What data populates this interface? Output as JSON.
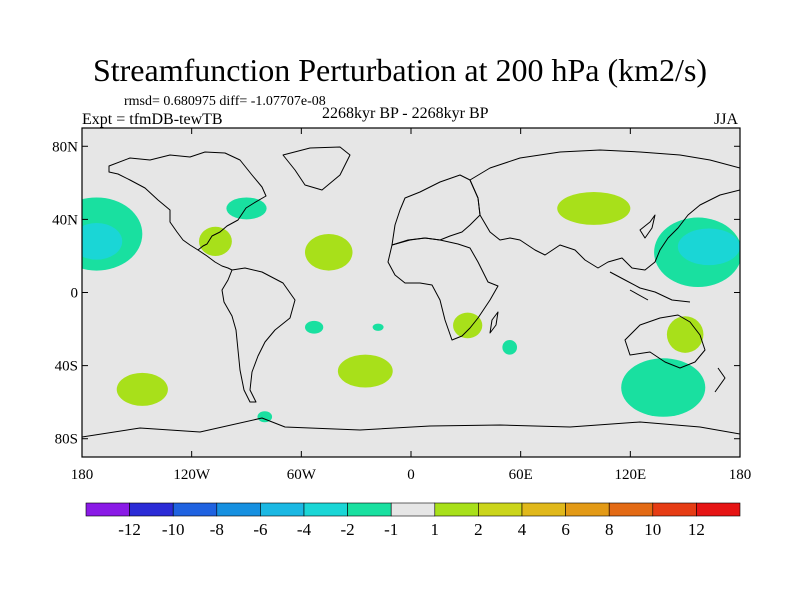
{
  "chart_data": {
    "type": "contour-map",
    "title": "Streamfunction Perturbation at 200 hPa (km2/s)",
    "stats_label": "rmsd= 0.680975 diff= -1.07707e-08",
    "period_label": "2268kyr BP - 2268kyr BP",
    "experiment_label": "Expt = tfmDB-tewTB",
    "season_label": "JJA",
    "xlim": [
      -180,
      180
    ],
    "ylim": [
      -90,
      90
    ],
    "x_ticks": [
      {
        "value": -180,
        "label": "180"
      },
      {
        "value": -120,
        "label": "120W"
      },
      {
        "value": -60,
        "label": "60W"
      },
      {
        "value": 0,
        "label": "0"
      },
      {
        "value": 60,
        "label": "60E"
      },
      {
        "value": 120,
        "label": "120E"
      },
      {
        "value": 180,
        "label": "180"
      }
    ],
    "y_ticks": [
      {
        "value": 80,
        "label": "80N"
      },
      {
        "value": 40,
        "label": "40N"
      },
      {
        "value": 0,
        "label": "0"
      },
      {
        "value": -40,
        "label": "40S"
      },
      {
        "value": -80,
        "label": "80S"
      }
    ],
    "colorbar": {
      "colors": [
        "#8a1ae6",
        "#2b2bd6",
        "#1f62e0",
        "#1690e0",
        "#1bb8e3",
        "#1ad6d6",
        "#19e0a0",
        "#e6e6e6",
        "#a8e01a",
        "#cbd51b",
        "#e0b81b",
        "#e39a16",
        "#e36a14",
        "#e63c14",
        "#e61414"
      ],
      "labels": [
        "-12",
        "-10",
        "-8",
        "-6",
        "-4",
        "-2",
        "-1",
        "1",
        "2",
        "4",
        "6",
        "8",
        "10",
        "12"
      ]
    },
    "anomalies": [
      {
        "region": "Pacific NW (north)",
        "lon": -172,
        "lat": 32,
        "rx": 25,
        "ry": 20,
        "level": -2
      },
      {
        "region": "Pacific NW (core)",
        "lon": -172,
        "lat": 28,
        "rx": 14,
        "ry": 10,
        "level": -4
      },
      {
        "region": "Great Lakes",
        "lon": -90,
        "lat": 46,
        "rx": 11,
        "ry": 6,
        "level": -2
      },
      {
        "region": "Mexico",
        "lon": -107,
        "lat": 28,
        "rx": 9,
        "ry": 8,
        "level": 2
      },
      {
        "region": "North Atlantic",
        "lon": -45,
        "lat": 22,
        "rx": 13,
        "ry": 10,
        "level": 2
      },
      {
        "region": "North Pacific (Japan)",
        "lon": 100,
        "lat": 46,
        "rx": 20,
        "ry": 9,
        "level": 2
      },
      {
        "region": "Western Pacific",
        "lon": 157,
        "lat": 22,
        "rx": 24,
        "ry": 19,
        "level": -2
      },
      {
        "region": "Western Pacific (core)",
        "lon": 163,
        "lat": 25,
        "rx": 17,
        "ry": 10,
        "level": -4
      },
      {
        "region": "East Africa",
        "lon": 31,
        "lat": -18,
        "rx": 8,
        "ry": 7,
        "level": 2
      },
      {
        "region": "Eastern Australia",
        "lon": 150,
        "lat": -23,
        "rx": 10,
        "ry": 10,
        "level": 2
      },
      {
        "region": "South Atlantic",
        "lon": -25,
        "lat": -43,
        "rx": 15,
        "ry": 9,
        "level": 2
      },
      {
        "region": "South Pacific",
        "lon": -147,
        "lat": -53,
        "rx": 14,
        "ry": 9,
        "level": 2
      },
      {
        "region": "South Australia Ocean",
        "lon": 138,
        "lat": -52,
        "rx": 23,
        "ry": 16,
        "level": -2
      },
      {
        "region": "Argentina",
        "lon": -53,
        "lat": -19,
        "rx": 5,
        "ry": 3.5,
        "level": -2
      },
      {
        "region": "South Atlantic (small)",
        "lon": -18,
        "lat": -19,
        "rx": 3,
        "ry": 2,
        "level": -2
      },
      {
        "region": "Madagascar SE",
        "lon": 54,
        "lat": -30,
        "rx": 4,
        "ry": 4,
        "level": -2
      },
      {
        "region": "Drake Passage",
        "lon": -80,
        "lat": -68,
        "rx": 4,
        "ry": 3,
        "level": -2
      }
    ]
  }
}
